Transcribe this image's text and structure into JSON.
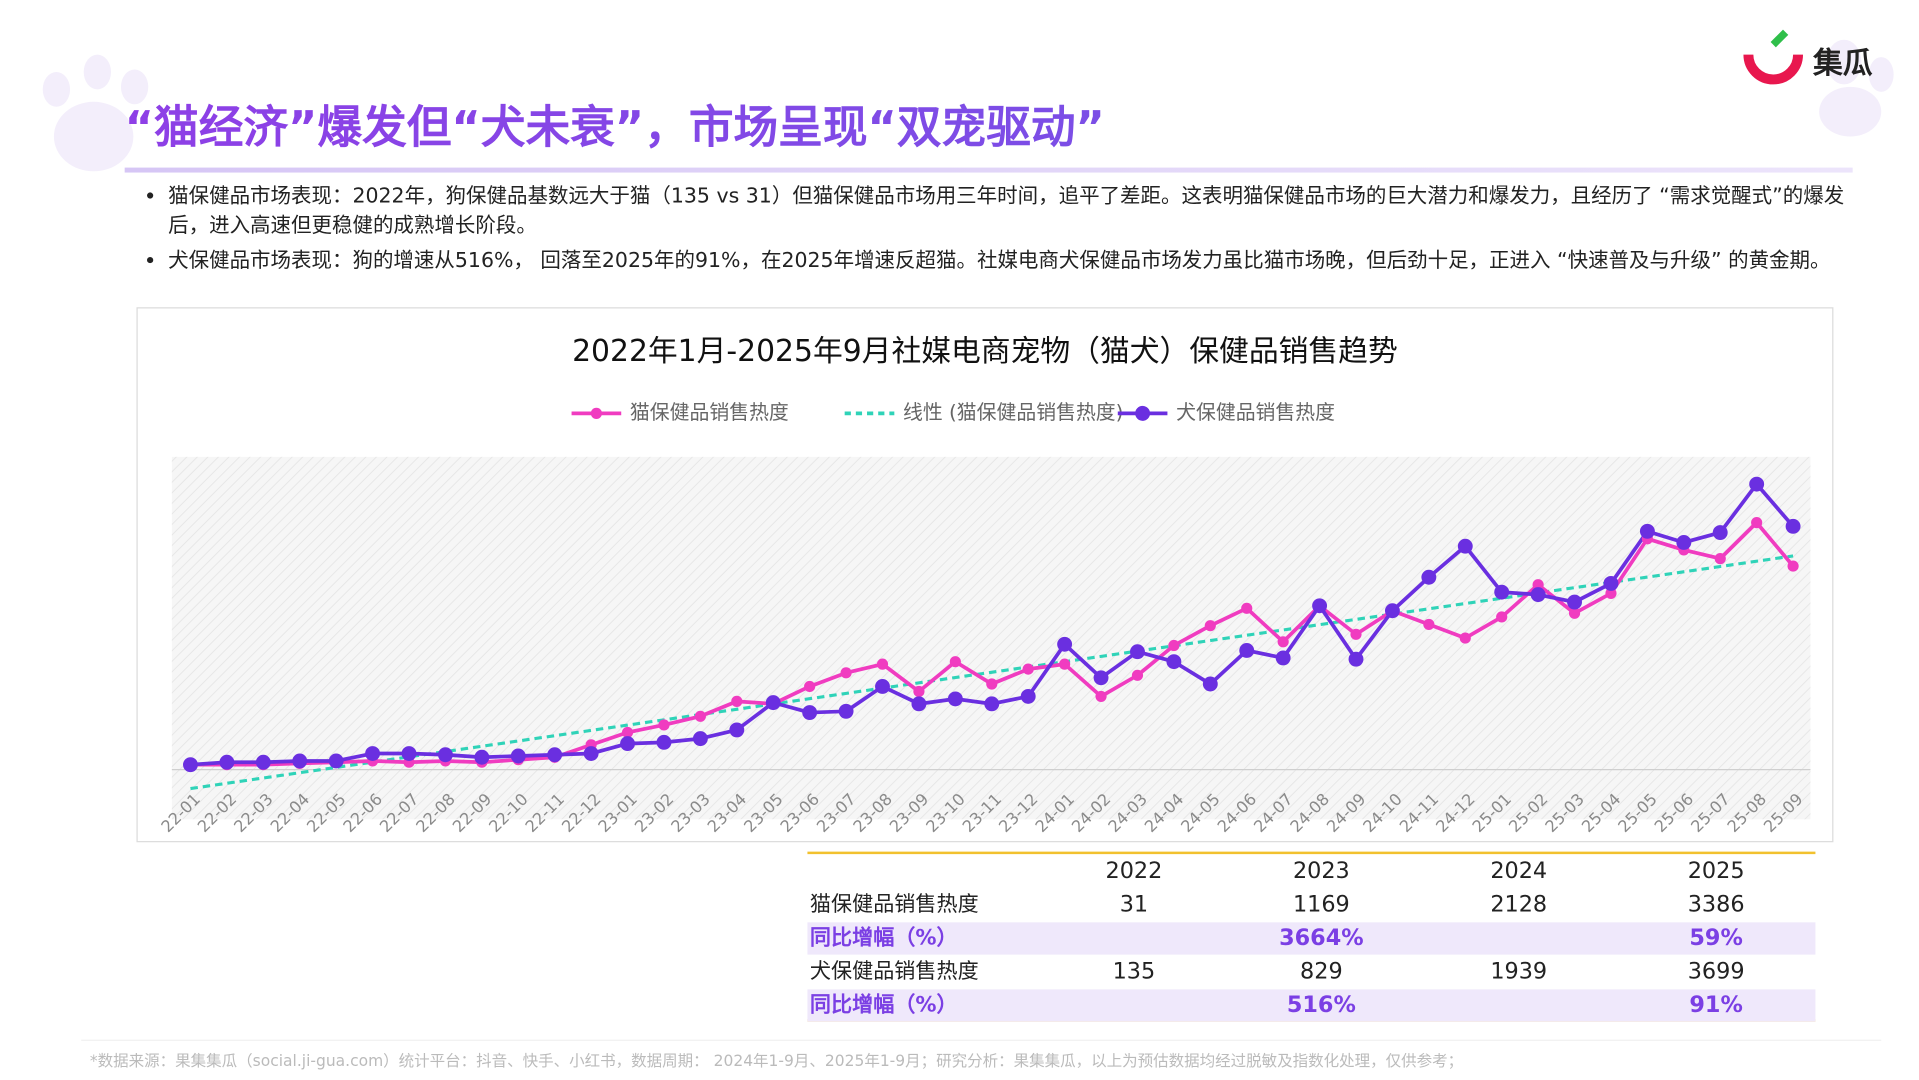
{
  "header": {
    "title": "“猫经济”爆发但“犬未衰”，市场呈现“双宠驱动”",
    "logo": "集瓜"
  },
  "bullets": [
    "猫保健品市场表现：2022年，狗保健品基数远大于猫（135 vs 31）但猫保健品市场用三年时间，追平了差距。这表明猫保健品市场的巨大潜力和爆发力，且经历了 “需求觉醒式”的爆发后，进入高速但更稳健的成熟增长阶段。",
    "犬保健品市场表现：狗的增速从516%， 回落至2025年的91%，在2025年增速反超猫。社媒电商犬保健品市场发力虽比猫市场晚，但后劲十足，正进入 “快速普及与升级” 的黄金期。"
  ],
  "chart_data": {
    "type": "line",
    "title": "2022年1月-2025年9月社媒电商宠物（猫犬）保健品销售趋势",
    "categories": [
      "22-01",
      "22-02",
      "22-03",
      "22-04",
      "22-05",
      "22-06",
      "22-07",
      "22-08",
      "22-09",
      "22-10",
      "22-11",
      "22-12",
      "23-01",
      "23-02",
      "23-03",
      "23-04",
      "23-05",
      "23-06",
      "23-07",
      "23-08",
      "23-09",
      "23-10",
      "23-11",
      "23-12",
      "24-01",
      "24-02",
      "24-03",
      "24-04",
      "24-05",
      "24-06",
      "24-07",
      "24-08",
      "24-09",
      "24-10",
      "24-11",
      "24-12",
      "25-01",
      "25-02",
      "25-03",
      "25-04",
      "25-05",
      "25-06",
      "25-07",
      "25-08",
      "25-09"
    ],
    "ylim": [
      0,
      100
    ],
    "series": [
      {
        "name": "猫保健品销售热度",
        "color": "#f03cc0",
        "marker": 4.5,
        "values": [
          1.6,
          1.6,
          1.6,
          2,
          2.4,
          2.8,
          2.4,
          2.8,
          2.4,
          3.2,
          4,
          8,
          12,
          14.4,
          17.2,
          22,
          21.2,
          26.8,
          31.2,
          34,
          25.2,
          34.8,
          27.6,
          32.4,
          34,
          23.6,
          30.4,
          40,
          46.4,
          52,
          41.2,
          52.8,
          43.6,
          51.2,
          46.8,
          42.4,
          49.2,
          59.6,
          50.4,
          56.8,
          74.4,
          70.8,
          68,
          79.6,
          65.6
        ],
        "trendline": {
          "name": "线性 (猫保健品销售热度)",
          "color": "#2fd3b8",
          "type": "linear"
        }
      },
      {
        "name": "犬保健品销售热度",
        "color": "#6a2fe0",
        "marker": 6,
        "values": [
          1.6,
          2.4,
          2.4,
          2.8,
          2.8,
          5.2,
          5.2,
          4.8,
          4,
          4.4,
          4.8,
          5.2,
          8.4,
          8.8,
          10,
          12.8,
          21.6,
          18.4,
          18.8,
          26.8,
          21.2,
          22.8,
          21.2,
          23.6,
          40.4,
          29.6,
          38,
          34.8,
          27.6,
          38.4,
          36,
          52.8,
          35.6,
          51.2,
          62,
          72,
          57.2,
          56.4,
          54,
          60,
          76.8,
          73.2,
          76.4,
          92,
          78.4
        ]
      }
    ]
  },
  "table": {
    "columns": [
      "2022",
      "2023",
      "2024",
      "2025"
    ],
    "rows": [
      {
        "label": "猫保健品销售热度",
        "cells": [
          "31",
          "1169",
          "2128",
          "3386"
        ]
      },
      {
        "label": "同比增幅（%）",
        "highlight": true,
        "cells": [
          null,
          "3664%",
          null,
          "59%"
        ]
      },
      {
        "label": "犬保健品销售热度",
        "cells": [
          "135",
          "829",
          "1939",
          "3699"
        ]
      },
      {
        "label": "同比增幅（%）",
        "highlight": true,
        "cells": [
          null,
          "516%",
          null,
          "91%"
        ]
      }
    ]
  },
  "footer": "*数据来源：果集集瓜（social.ji-gua.com）统计平台：抖音、快手、小红书，数据周期： 2024年1-9月、2025年1-9月；研究分析：果集集瓜，以上为预估数据均经过脱敏及指数化处理，仅供参考；"
}
